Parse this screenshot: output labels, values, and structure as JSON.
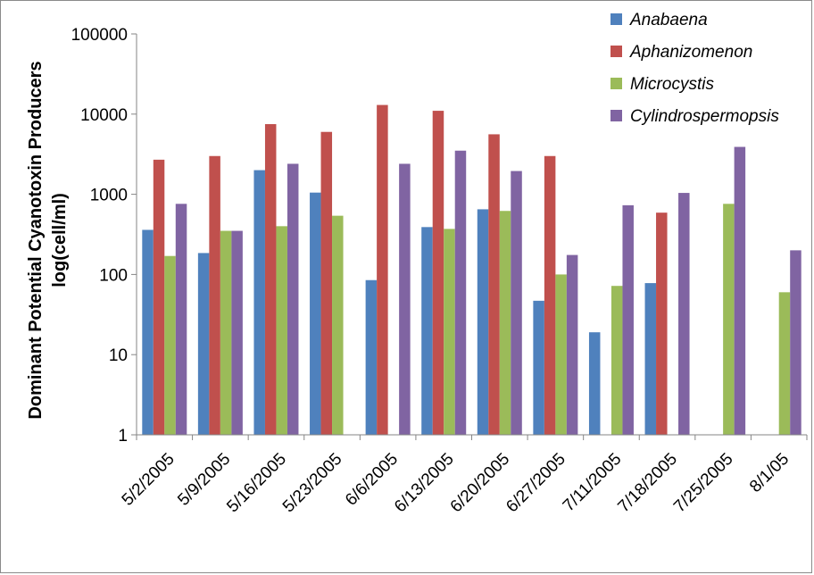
{
  "chart_data": {
    "type": "bar",
    "scale": "log",
    "ylabel_line1": "Dominant Potential Cyanotoxin  Producers",
    "ylabel_line2": "log(cell/ml)",
    "ylim": [
      1,
      100000
    ],
    "yticks": [
      "1",
      "10",
      "100",
      "1000",
      "10000",
      "100000"
    ],
    "categories": [
      "5/2/2005",
      "5/9/2005",
      "5/16/2005",
      "5/23/2005",
      "6/6/2005",
      "6/13/2005",
      "6/20/2005",
      "6/27/2005",
      "7/11/2005",
      "7/18/2005",
      "7/25/2005",
      "8/1/05"
    ],
    "legend_position": "top-right",
    "series": [
      {
        "name": "Anabaena",
        "color": "#4f81bd",
        "values": [
          360,
          185,
          2000,
          1050,
          85,
          390,
          650,
          47,
          19,
          78,
          null,
          null
        ]
      },
      {
        "name": "Aphanizomenon",
        "color": "#c0504d",
        "values": [
          2700,
          3000,
          7500,
          6000,
          13000,
          11000,
          5600,
          3000,
          null,
          590,
          null,
          null
        ]
      },
      {
        "name": "Microcystis",
        "color": "#9bbb59",
        "values": [
          170,
          350,
          400,
          540,
          null,
          370,
          620,
          100,
          72,
          null,
          760,
          60
        ]
      },
      {
        "name": "Cylindrospermopsis",
        "color": "#8064a2",
        "values": [
          760,
          350,
          2400,
          null,
          2400,
          3500,
          1950,
          175,
          730,
          1040,
          3900,
          200
        ]
      }
    ]
  }
}
